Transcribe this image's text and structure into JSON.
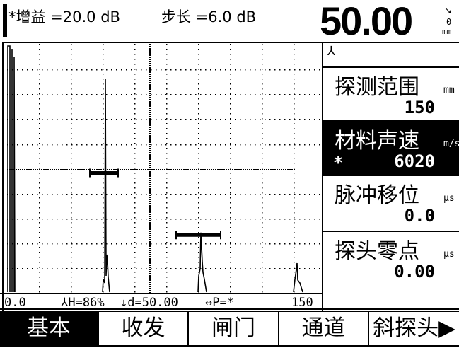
{
  "header": {
    "marker": "*",
    "gain_text": "增益 =20.0 dB",
    "step_text": "步长 =6.0 dB",
    "readout_value": "50.00",
    "readout_unit": "mm",
    "readout_small": "0"
  },
  "panel": {
    "top_marker": "⅄",
    "items": [
      {
        "label": "探测范围",
        "unit": "mm",
        "value": "150",
        "selected": false,
        "prefix": ""
      },
      {
        "label": "材料声速",
        "unit": "m/s",
        "value": "6020",
        "selected": true,
        "prefix": "*"
      },
      {
        "label": "脉冲移位",
        "unit": "μs",
        "value": "0.0",
        "selected": false,
        "prefix": ""
      },
      {
        "label": "探头零点",
        "unit": "μs",
        "value": "0.00",
        "selected": false,
        "prefix": ""
      }
    ]
  },
  "status": {
    "range_start": "0.0",
    "height": "⅄H=86%",
    "depth": "↓d=50.00",
    "peak": "↔P=*",
    "range_end": "150"
  },
  "menu": {
    "items": [
      {
        "label": "基本",
        "active": true
      },
      {
        "label": "收发",
        "active": false
      },
      {
        "label": "闸门",
        "active": false
      },
      {
        "label": "通道",
        "active": false
      },
      {
        "label": "斜探头▶",
        "active": false
      }
    ]
  },
  "waveform": {
    "echo_peaks_percent": [
      86,
      24,
      7
    ],
    "gate_a_level_percent": 48,
    "gate_b_level_percent": 23
  }
}
